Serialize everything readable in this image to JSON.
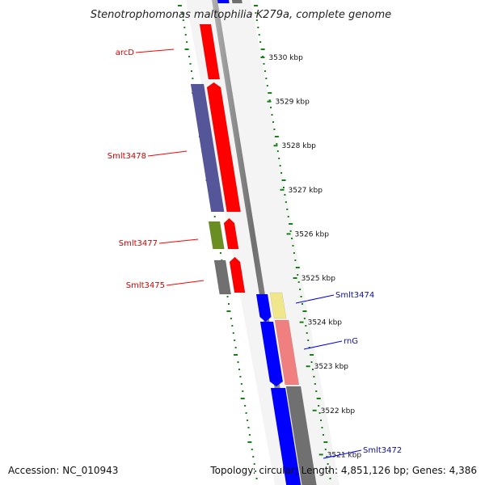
{
  "title": "Stenotrophomonas maltophilia K279a, complete genome",
  "footer": {
    "accession": "Accession: NC_010943",
    "topology": "Topology: circular; Length: 4,851,126 bp; Genes: 4,386"
  },
  "scale": {
    "kbp_labels": [
      "3530 kbp",
      "3529 kbp",
      "3528 kbp",
      "3527 kbp",
      "3526 kbp",
      "3525 kbp",
      "3524 kbp",
      "3523 kbp",
      "3522 kbp",
      "3521 kbp"
    ]
  },
  "genes_reverse": [
    {
      "label": "arcD",
      "color": "#ff0000"
    },
    {
      "label": "Smlt3478",
      "color": "#ff0000"
    },
    {
      "label": "Smlt3477",
      "color": "#ff0000"
    },
    {
      "label": "Smlt3475",
      "color": "#ff0000"
    }
  ],
  "genes_forward": [
    {
      "label": "Smlt3474",
      "color": "#0000ff"
    },
    {
      "label": "rnG",
      "color": "#0000ff"
    },
    {
      "label": "Smlt3472",
      "color": "#0000ff"
    }
  ],
  "colors": {
    "forward_cds": "#0000ff",
    "reverse_cds": "#ff0000",
    "backbone": "#808080",
    "gc_ticks": "#1a7f1a",
    "cog_purple": "#55559a",
    "cog_green": "#6b8e23",
    "cog_gray": "#707070",
    "cog_pink": "#f08080",
    "cog_yellow": "#f0e68c"
  }
}
